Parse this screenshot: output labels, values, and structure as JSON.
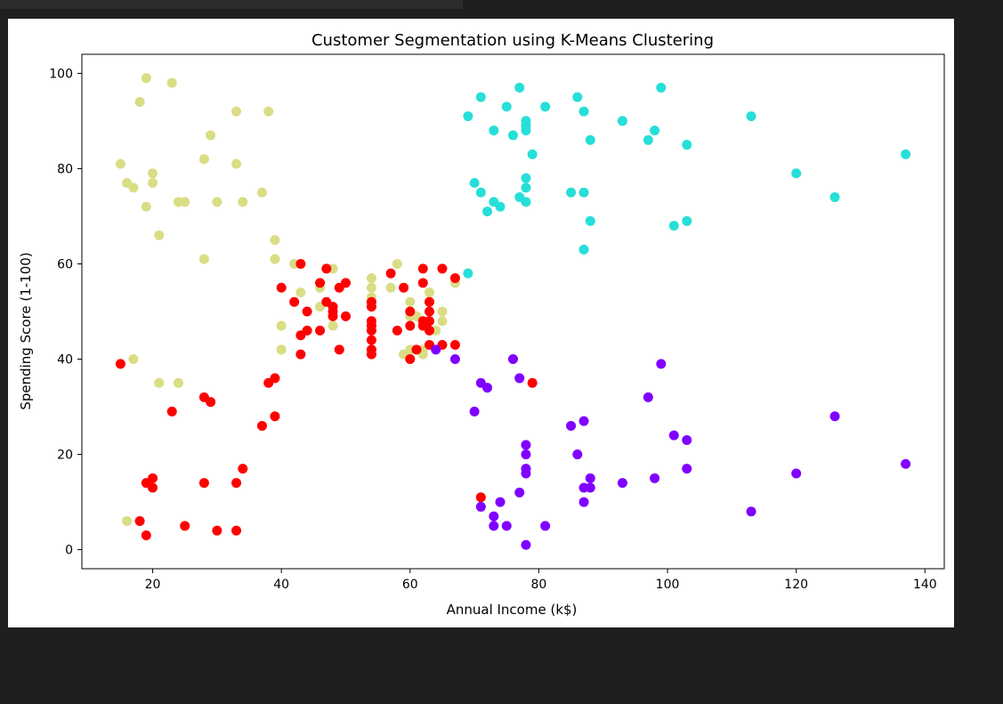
{
  "chart_data": {
    "type": "scatter",
    "title": "Customer Segmentation using K-Means Clustering",
    "xlabel": "Annual Income (k$)",
    "ylabel": "Spending Score (1-100)",
    "xlim": [
      9,
      143
    ],
    "ylim": [
      -4,
      104
    ],
    "xticks": [
      20,
      40,
      60,
      80,
      100,
      120,
      140
    ],
    "yticks": [
      0,
      20,
      40,
      60,
      80,
      100
    ],
    "grid": false,
    "legend": "none",
    "clusters": [
      {
        "color": "#d9dd84",
        "points": [
          [
            15,
            81
          ],
          [
            16,
            77
          ],
          [
            17,
            76
          ],
          [
            18,
            94
          ],
          [
            19,
            99
          ],
          [
            19,
            72
          ],
          [
            20,
            79
          ],
          [
            20,
            77
          ],
          [
            21,
            66
          ],
          [
            23,
            98
          ],
          [
            24,
            73
          ],
          [
            25,
            73
          ],
          [
            28,
            82
          ],
          [
            28,
            61
          ],
          [
            29,
            87
          ],
          [
            30,
            73
          ],
          [
            33,
            92
          ],
          [
            33,
            81
          ],
          [
            34,
            73
          ],
          [
            37,
            75
          ],
          [
            38,
            92
          ],
          [
            39,
            65
          ],
          [
            39,
            61
          ],
          [
            40,
            47
          ],
          [
            40,
            42
          ],
          [
            42,
            60
          ],
          [
            43,
            54
          ],
          [
            46,
            55
          ],
          [
            46,
            51
          ],
          [
            48,
            59
          ],
          [
            48,
            47
          ],
          [
            54,
            57
          ],
          [
            54,
            55
          ],
          [
            54,
            53
          ],
          [
            57,
            55
          ],
          [
            58,
            60
          ],
          [
            59,
            41
          ],
          [
            60,
            52
          ],
          [
            60,
            50
          ],
          [
            60,
            49
          ],
          [
            60,
            42
          ],
          [
            61,
            49
          ],
          [
            62,
            41
          ],
          [
            62,
            42
          ],
          [
            63,
            54
          ],
          [
            63,
            52
          ],
          [
            64,
            46
          ],
          [
            65,
            50
          ],
          [
            65,
            48
          ],
          [
            67,
            56
          ],
          [
            15,
            39
          ],
          [
            17,
            40
          ],
          [
            21,
            35
          ],
          [
            24,
            35
          ],
          [
            16,
            6
          ]
        ]
      },
      {
        "color": "#26dfd8",
        "points": [
          [
            69,
            58
          ],
          [
            69,
            91
          ],
          [
            70,
            77
          ],
          [
            71,
            95
          ],
          [
            71,
            75
          ],
          [
            72,
            71
          ],
          [
            73,
            88
          ],
          [
            73,
            73
          ],
          [
            74,
            72
          ],
          [
            75,
            93
          ],
          [
            76,
            87
          ],
          [
            77,
            97
          ],
          [
            77,
            74
          ],
          [
            78,
            90
          ],
          [
            78,
            89
          ],
          [
            78,
            88
          ],
          [
            78,
            78
          ],
          [
            78,
            76
          ],
          [
            78,
            73
          ],
          [
            79,
            83
          ],
          [
            81,
            93
          ],
          [
            85,
            75
          ],
          [
            86,
            95
          ],
          [
            87,
            92
          ],
          [
            87,
            75
          ],
          [
            87,
            63
          ],
          [
            88,
            86
          ],
          [
            88,
            69
          ],
          [
            93,
            90
          ],
          [
            97,
            86
          ],
          [
            98,
            88
          ],
          [
            99,
            97
          ],
          [
            101,
            68
          ],
          [
            103,
            85
          ],
          [
            103,
            69
          ],
          [
            113,
            91
          ],
          [
            120,
            79
          ],
          [
            126,
            74
          ],
          [
            137,
            83
          ]
        ]
      },
      {
        "color": "#ff0000",
        "points": [
          [
            15,
            39
          ],
          [
            18,
            6
          ],
          [
            19,
            14
          ],
          [
            19,
            3
          ],
          [
            20,
            15
          ],
          [
            20,
            13
          ],
          [
            23,
            29
          ],
          [
            25,
            5
          ],
          [
            28,
            32
          ],
          [
            28,
            14
          ],
          [
            29,
            31
          ],
          [
            30,
            4
          ],
          [
            33,
            14
          ],
          [
            33,
            4
          ],
          [
            34,
            17
          ],
          [
            37,
            26
          ],
          [
            38,
            35
          ],
          [
            39,
            36
          ],
          [
            39,
            28
          ],
          [
            40,
            55
          ],
          [
            42,
            52
          ],
          [
            43,
            60
          ],
          [
            43,
            45
          ],
          [
            43,
            41
          ],
          [
            44,
            50
          ],
          [
            44,
            46
          ],
          [
            46,
            56
          ],
          [
            46,
            46
          ],
          [
            47,
            59
          ],
          [
            47,
            52
          ],
          [
            48,
            51
          ],
          [
            48,
            50
          ],
          [
            48,
            49
          ],
          [
            49,
            55
          ],
          [
            49,
            42
          ],
          [
            50,
            56
          ],
          [
            50,
            49
          ],
          [
            54,
            52
          ],
          [
            54,
            51
          ],
          [
            54,
            48
          ],
          [
            54,
            47
          ],
          [
            54,
            46
          ],
          [
            54,
            44
          ],
          [
            54,
            42
          ],
          [
            54,
            41
          ],
          [
            57,
            58
          ],
          [
            58,
            46
          ],
          [
            59,
            55
          ],
          [
            60,
            40
          ],
          [
            60,
            47
          ],
          [
            60,
            50
          ],
          [
            61,
            42
          ],
          [
            62,
            59
          ],
          [
            62,
            56
          ],
          [
            62,
            48
          ],
          [
            62,
            47
          ],
          [
            63,
            52
          ],
          [
            63,
            50
          ],
          [
            63,
            48
          ],
          [
            63,
            46
          ],
          [
            63,
            43
          ],
          [
            65,
            59
          ],
          [
            65,
            43
          ],
          [
            67,
            57
          ],
          [
            67,
            43
          ],
          [
            71,
            11
          ],
          [
            79,
            35
          ]
        ]
      },
      {
        "color": "#8000ff",
        "points": [
          [
            64,
            42
          ],
          [
            67,
            40
          ],
          [
            70,
            29
          ],
          [
            71,
            35
          ],
          [
            71,
            9
          ],
          [
            72,
            34
          ],
          [
            73,
            7
          ],
          [
            73,
            5
          ],
          [
            74,
            10
          ],
          [
            75,
            5
          ],
          [
            76,
            40
          ],
          [
            77,
            36
          ],
          [
            77,
            12
          ],
          [
            78,
            22
          ],
          [
            78,
            20
          ],
          [
            78,
            17
          ],
          [
            78,
            16
          ],
          [
            78,
            1
          ],
          [
            81,
            5
          ],
          [
            85,
            26
          ],
          [
            86,
            20
          ],
          [
            87,
            27
          ],
          [
            87,
            13
          ],
          [
            87,
            10
          ],
          [
            88,
            15
          ],
          [
            88,
            13
          ],
          [
            93,
            14
          ],
          [
            97,
            32
          ],
          [
            98,
            15
          ],
          [
            99,
            39
          ],
          [
            101,
            24
          ],
          [
            103,
            23
          ],
          [
            103,
            17
          ],
          [
            113,
            8
          ],
          [
            120,
            16
          ],
          [
            126,
            28
          ],
          [
            137,
            18
          ]
        ]
      }
    ]
  }
}
